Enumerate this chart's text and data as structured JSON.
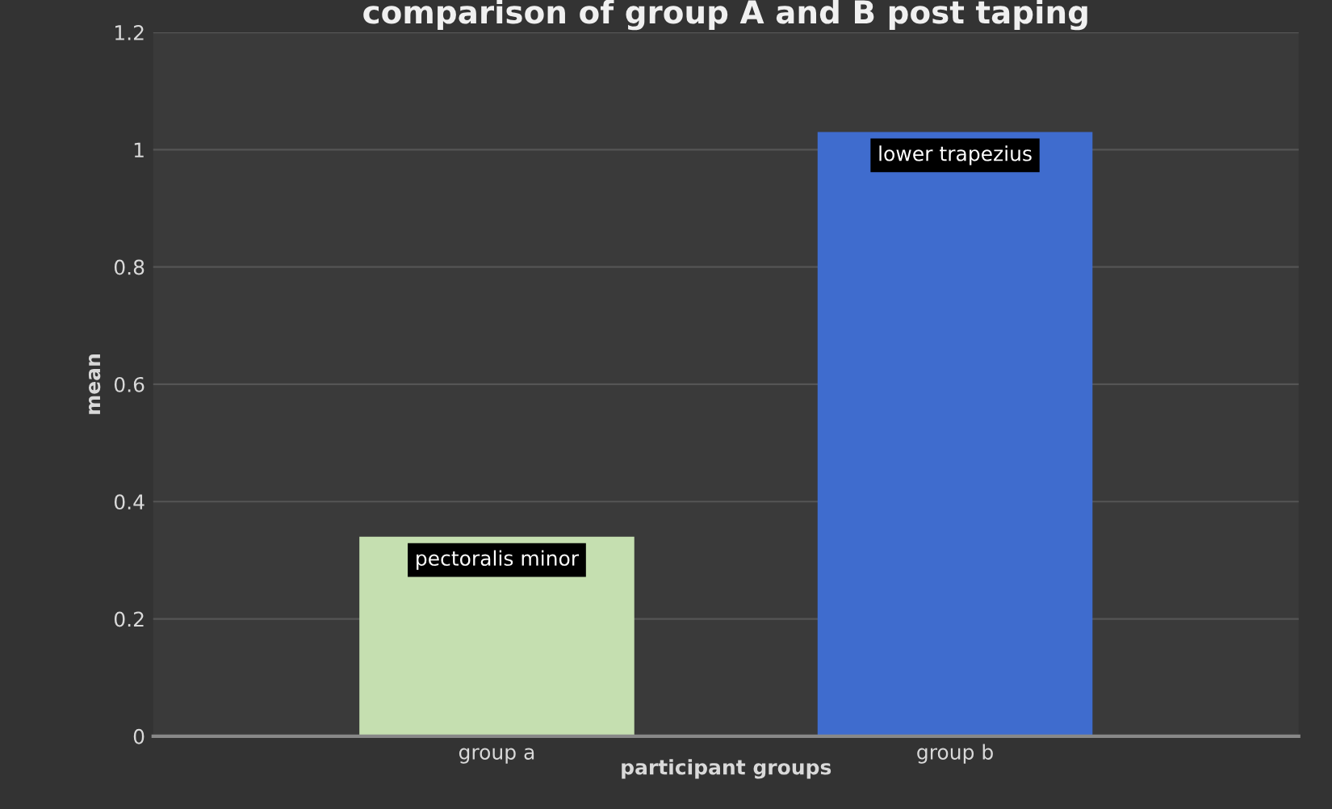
{
  "chart_data": {
    "type": "bar",
    "title": "comparison of group A and B post taping",
    "xlabel": "participant groups",
    "ylabel": "mean",
    "categories": [
      "group a",
      "group b"
    ],
    "values": [
      0.34,
      1.03
    ],
    "colors": [
      "#c5dfb0",
      "#3f6cce"
    ],
    "ylim": [
      0,
      1.2
    ],
    "yticks": [
      0,
      0.2,
      0.4,
      0.6,
      0.8,
      1,
      1.2
    ],
    "grid": "y",
    "annotations": [
      {
        "text": "pectoralis minor",
        "x": "group a",
        "y": 0.34
      },
      {
        "text": "lower trapezius",
        "x": "group b",
        "y": 1.03
      }
    ]
  }
}
